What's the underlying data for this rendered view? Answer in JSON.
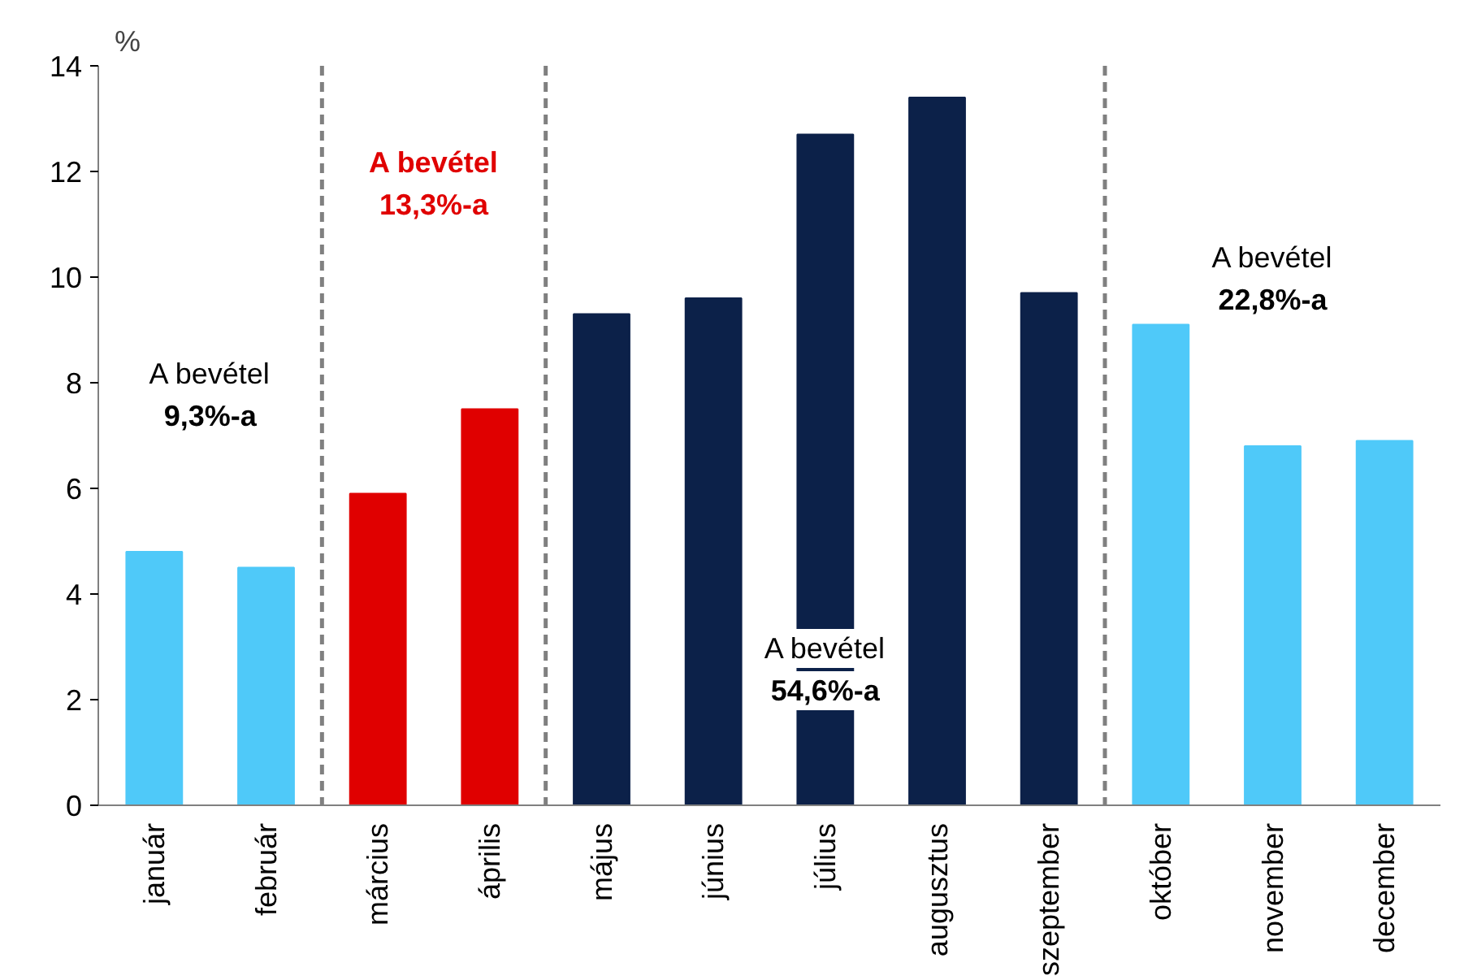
{
  "chart_data": {
    "type": "bar",
    "ylabel": "%",
    "categories": [
      "január",
      "február",
      "március",
      "április",
      "május",
      "június",
      "július",
      "augusztus",
      "szeptember",
      "október",
      "november",
      "december"
    ],
    "values": [
      4.8,
      4.5,
      5.9,
      7.5,
      9.3,
      9.6,
      12.7,
      13.4,
      9.7,
      9.1,
      6.8,
      6.9
    ],
    "colors": [
      "#4fc9f9",
      "#4fc9f9",
      "#e00000",
      "#e00000",
      "#0c2149",
      "#0c2149",
      "#0c2149",
      "#0c2149",
      "#0c2149",
      "#4fc9f9",
      "#4fc9f9",
      "#4fc9f9"
    ],
    "ylim": [
      0,
      14
    ],
    "yticks": [
      0,
      2,
      4,
      6,
      8,
      10,
      12,
      14
    ],
    "grid": false,
    "annotations": [
      "A bevétel\n9,3%-a",
      "A bevétel\n13,3%-a",
      "A bevétel\n54,6%-a",
      "A bevétel\n22,8%-a"
    ]
  }
}
